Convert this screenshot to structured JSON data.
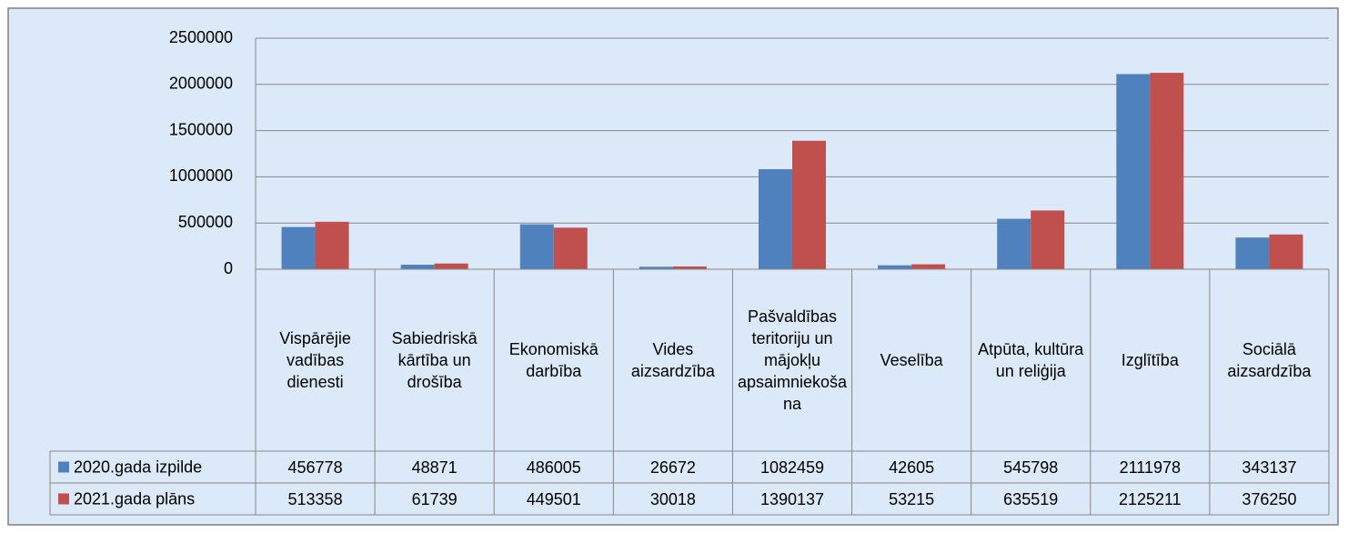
{
  "chart_data": {
    "type": "bar",
    "categories": [
      "Vispārējie vadības dienesti",
      "Sabiedriskā kārtība un drošība",
      "Ekonomiskā darbība",
      "Vides aizsardzība",
      "Pašvaldības teritoriju un mājokļu apsaimniekošana",
      "Veselība",
      "Atpūta, kultūra un reliģija",
      "Izglītība",
      "Sociālā aizsardzība"
    ],
    "series": [
      {
        "name": "2020.gada izpilde",
        "color": "#4f81bd",
        "values": [
          456778,
          48871,
          486005,
          26672,
          1082459,
          42605,
          545798,
          2111978,
          343137
        ]
      },
      {
        "name": "2021.gada plāns",
        "color": "#c0504d",
        "values": [
          513358,
          61739,
          449501,
          30018,
          1390137,
          53215,
          635519,
          2125211,
          376250
        ]
      }
    ],
    "ylim": [
      0,
      2500000
    ],
    "yticks": [
      0,
      500000,
      1000000,
      1500000,
      2000000,
      2500000
    ],
    "grid": true
  }
}
